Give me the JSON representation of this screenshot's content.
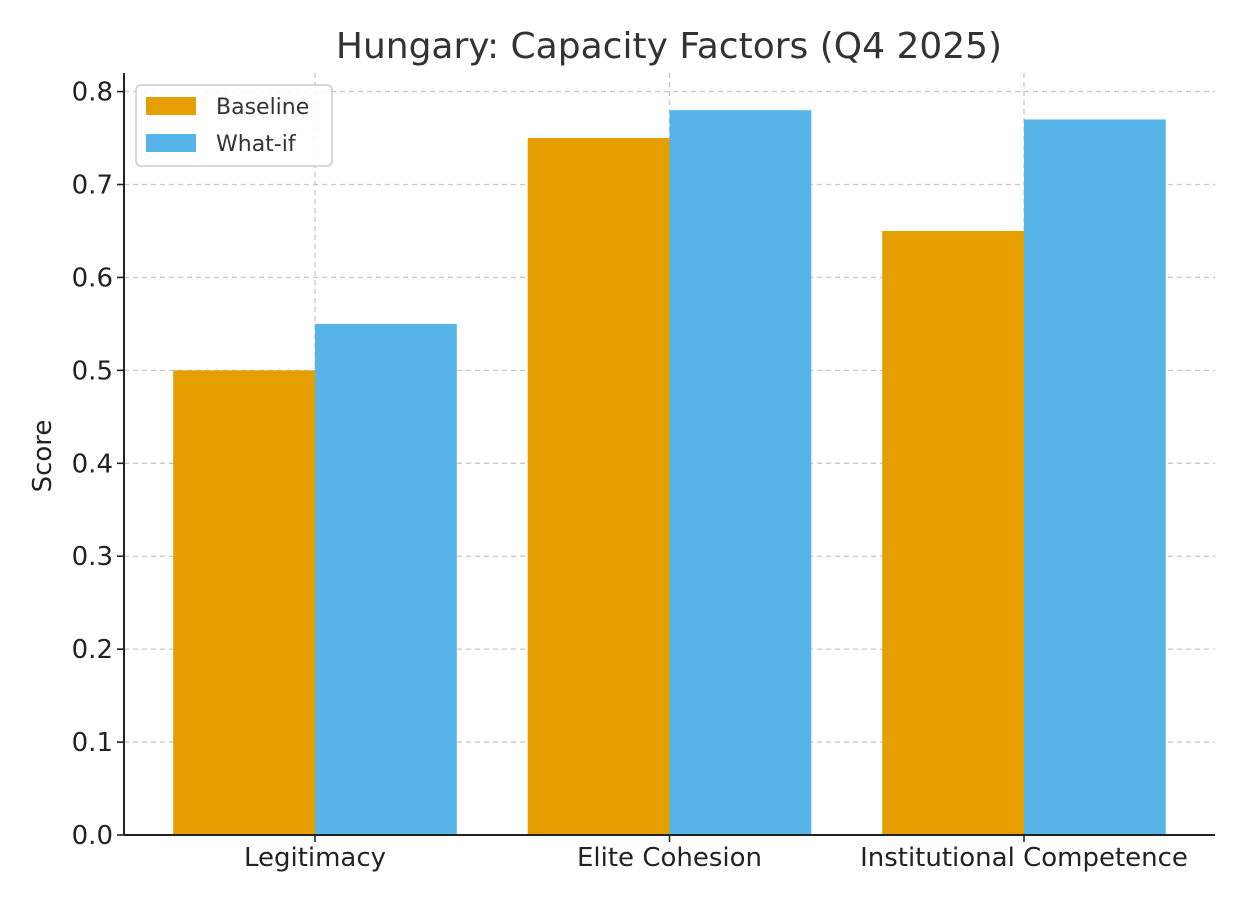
{
  "chart_data": {
    "type": "bar",
    "title": "Hungary: Capacity Factors (Q4 2025)",
    "xlabel": "",
    "ylabel": "Score",
    "categories": [
      "Legitimacy",
      "Elite Cohesion",
      "Institutional Competence"
    ],
    "series": [
      {
        "name": "Baseline",
        "color": "#E69F00",
        "values": [
          0.5,
          0.75,
          0.65
        ]
      },
      {
        "name": "What-if",
        "color": "#56B4E9",
        "values": [
          0.55,
          0.78,
          0.77
        ]
      }
    ],
    "ylim": [
      0,
      0.82
    ],
    "yticks": [
      "0.0",
      "0.1",
      "0.2",
      "0.3",
      "0.4",
      "0.5",
      "0.6",
      "0.7",
      "0.8"
    ],
    "grid": true,
    "legend_position": "top-left"
  }
}
